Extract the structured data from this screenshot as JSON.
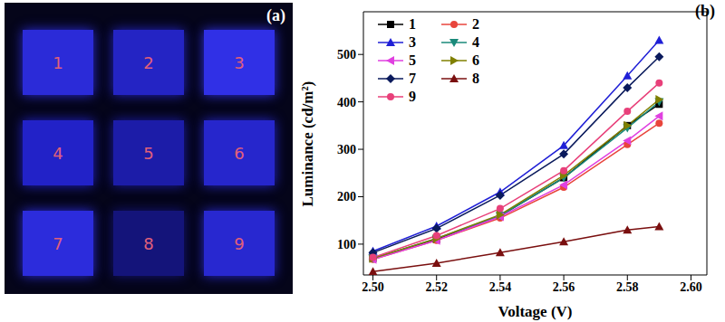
{
  "panel_a": {
    "label": "(a)",
    "pixels": [
      "1",
      "2",
      "3",
      "4",
      "5",
      "6",
      "7",
      "8",
      "9"
    ]
  },
  "chart_data": {
    "type": "line",
    "title": "(b)",
    "x_label": "Voltage (V)",
    "y_label": "Luminance (cd/m²)",
    "x": [
      2.5,
      2.52,
      2.54,
      2.56,
      2.58,
      2.59
    ],
    "xlim": [
      2.497,
      2.605
    ],
    "xticks": [
      {
        "value": 2.5,
        "label": "2.50"
      },
      {
        "value": 2.52,
        "label": "2.52"
      },
      {
        "value": 2.54,
        "label": "2.54"
      },
      {
        "value": 2.56,
        "label": "2.56"
      },
      {
        "value": 2.58,
        "label": "2.58"
      },
      {
        "value": 2.6,
        "label": "2.60"
      }
    ],
    "ylim": [
      35,
      590
    ],
    "yticks": [
      100,
      200,
      300,
      400,
      500
    ],
    "legend": "upper left",
    "grid": false,
    "series": [
      {
        "name": "1",
        "color": "#000000",
        "marker": "square",
        "values": [
          70,
          110,
          160,
          240,
          350,
          395
        ]
      },
      {
        "name": "2",
        "color": "#e8453c",
        "marker": "circle",
        "values": [
          68,
          108,
          155,
          220,
          310,
          355
        ]
      },
      {
        "name": "3",
        "color": "#1f1fd6",
        "marker": "triangle",
        "values": [
          85,
          138,
          210,
          308,
          455,
          530
        ]
      },
      {
        "name": "4",
        "color": "#1a8a7a",
        "marker": "triangle-down",
        "values": [
          70,
          112,
          160,
          240,
          345,
          400
        ]
      },
      {
        "name": "5",
        "color": "#e040e0",
        "marker": "triangle-left",
        "values": [
          68,
          108,
          158,
          225,
          318,
          370
        ]
      },
      {
        "name": "6",
        "color": "#808000",
        "marker": "triangle-right",
        "values": [
          70,
          112,
          162,
          245,
          350,
          405
        ]
      },
      {
        "name": "7",
        "color": "#0a1a5c",
        "marker": "diamond",
        "values": [
          82,
          133,
          203,
          290,
          430,
          495
        ]
      },
      {
        "name": "8",
        "color": "#7a0f0f",
        "marker": "triangle-up",
        "values": [
          42,
          60,
          82,
          105,
          130,
          137
        ]
      },
      {
        "name": "9",
        "color": "#e8407a",
        "marker": "circle",
        "values": [
          72,
          118,
          175,
          255,
          380,
          440
        ]
      }
    ]
  }
}
